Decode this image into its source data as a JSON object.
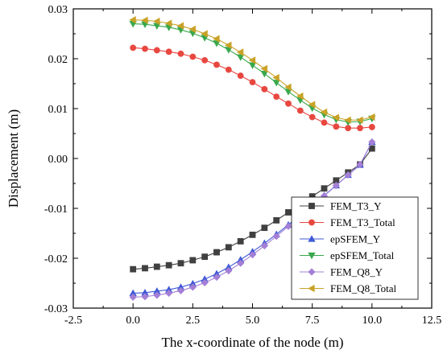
{
  "chart_data": {
    "type": "line",
    "title": "",
    "xlabel": "The x-coordinate of the node (m)",
    "ylabel": "Displacement (m)",
    "xlim": [
      -2.5,
      12.5
    ],
    "ylim": [
      -0.03,
      0.03
    ],
    "x_ticks": [
      "-2.5",
      "0.0",
      "2.5",
      "5.0",
      "7.5",
      "10.0",
      "12.5"
    ],
    "y_ticks": [
      "-0.03",
      "-0.02",
      "-0.01",
      "0.00",
      "0.01",
      "0.02",
      "0.03"
    ],
    "x_tick_values": [
      -2.5,
      0,
      2.5,
      5,
      7.5,
      10,
      12.5
    ],
    "y_tick_values": [
      -0.03,
      -0.02,
      -0.01,
      0,
      0.01,
      0.02,
      0.03
    ],
    "grid": false,
    "legend_position": "bottom-right",
    "x": [
      0,
      0.5,
      1,
      1.5,
      2,
      2.5,
      3,
      3.5,
      4,
      4.5,
      5,
      5.5,
      6,
      6.5,
      7,
      7.5,
      8,
      8.5,
      9,
      9.5,
      10
    ],
    "series": [
      {
        "name": "FEM_T3_Y",
        "color": "#404040",
        "marker": "square",
        "values": [
          -0.0222,
          -0.022,
          -0.0217,
          -0.0214,
          -0.021,
          -0.0204,
          -0.0197,
          -0.0188,
          -0.0178,
          -0.0166,
          -0.0153,
          -0.0139,
          -0.0124,
          -0.0108,
          -0.0092,
          -0.0076,
          -0.006,
          -0.0044,
          -0.0028,
          -0.0012,
          0.002
        ]
      },
      {
        "name": "FEM_T3_Total",
        "color": "#e8473f",
        "marker": "circle",
        "values": [
          0.0222,
          0.022,
          0.0217,
          0.0214,
          0.021,
          0.0204,
          0.0197,
          0.0188,
          0.0178,
          0.0166,
          0.0153,
          0.0139,
          0.0124,
          0.011,
          0.0096,
          0.0083,
          0.0072,
          0.0064,
          0.0061,
          0.0061,
          0.0063
        ]
      },
      {
        "name": "epSFEM_Y",
        "color": "#3f59d6",
        "marker": "triangle-up",
        "values": [
          -0.027,
          -0.0269,
          -0.0266,
          -0.0263,
          -0.0258,
          -0.0251,
          -0.0242,
          -0.0231,
          -0.0218,
          -0.0203,
          -0.0187,
          -0.017,
          -0.0152,
          -0.0133,
          -0.0113,
          -0.0094,
          -0.0074,
          -0.0054,
          -0.0033,
          -0.0013,
          0.0033
        ]
      },
      {
        "name": "epSFEM_Total",
        "color": "#39a84c",
        "marker": "triangle-down",
        "values": [
          0.027,
          0.0269,
          0.0266,
          0.0263,
          0.0258,
          0.0251,
          0.0242,
          0.0231,
          0.0218,
          0.0203,
          0.0187,
          0.017,
          0.0152,
          0.0134,
          0.0117,
          0.0101,
          0.0088,
          0.0078,
          0.0073,
          0.0074,
          0.008
        ]
      },
      {
        "name": "FEM_Q8_Y",
        "color": "#a47fd6",
        "marker": "diamond",
        "values": [
          -0.0278,
          -0.0277,
          -0.0274,
          -0.027,
          -0.0265,
          -0.0258,
          -0.0249,
          -0.0238,
          -0.0225,
          -0.021,
          -0.0193,
          -0.0175,
          -0.0156,
          -0.0136,
          -0.0116,
          -0.0096,
          -0.0075,
          -0.0054,
          -0.0033,
          -0.0012,
          0.0033
        ]
      },
      {
        "name": "FEM_Q8_Total",
        "color": "#c9a227",
        "marker": "triangle-left",
        "values": [
          0.0278,
          0.0277,
          0.0275,
          0.0271,
          0.0266,
          0.0259,
          0.025,
          0.024,
          0.0227,
          0.0213,
          0.0197,
          0.018,
          0.0162,
          0.0143,
          0.0125,
          0.0108,
          0.0093,
          0.0082,
          0.0077,
          0.0077,
          0.0083
        ]
      }
    ]
  }
}
